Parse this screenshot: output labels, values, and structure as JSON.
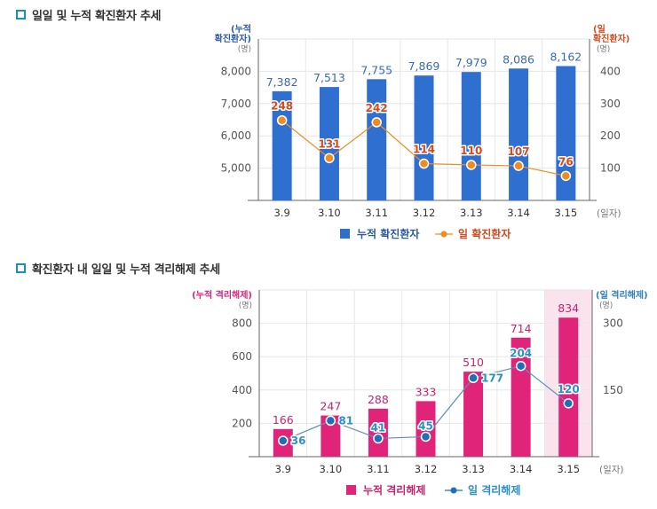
{
  "page": {
    "sections": [
      {
        "title": "일일 및 누적 확진환자 추세"
      },
      {
        "title": "확진환자 내 일일 및 누적 격리해제 추세"
      }
    ]
  },
  "chart_data": [
    {
      "type": "bar+line",
      "title": "일일 및 누적 확진환자 추세",
      "categories": [
        "3.9",
        "3.10",
        "3.11",
        "3.12",
        "3.13",
        "3.14",
        "3.15"
      ],
      "xlabel": "(일자)",
      "left_axis": {
        "title_lines": [
          "(누적",
          "확진환자)"
        ],
        "unit": "(명)",
        "ticks": [
          5000,
          6000,
          7000,
          8000
        ],
        "tick_labels": [
          "5,000",
          "6,000",
          "7,000",
          "8,000"
        ],
        "range": [
          4000,
          9000
        ],
        "color": "#2c5aa0"
      },
      "right_axis": {
        "title_lines": [
          "(일",
          "확진환자)"
        ],
        "unit": "(명)",
        "ticks": [
          100,
          200,
          300,
          400
        ],
        "tick_labels": [
          "100",
          "200",
          "300",
          "400"
        ],
        "range": [
          0,
          500
        ],
        "color": "#d24a1e"
      },
      "series": [
        {
          "name": "누적 확진환자",
          "type": "bar",
          "axis": "left",
          "color": "#2f6fd0",
          "label_color": "#3a6ab0",
          "values": [
            7382,
            7513,
            7755,
            7869,
            7979,
            8086,
            8162
          ],
          "labels": [
            "7,382",
            "7,513",
            "7,755",
            "7,869",
            "7,979",
            "8,086",
            "8,162"
          ]
        },
        {
          "name": "일 확진환자",
          "type": "line",
          "axis": "right",
          "color": "#f08c1e",
          "label_color": "#d24a1e",
          "values": [
            248,
            131,
            242,
            114,
            110,
            107,
            76
          ],
          "labels": [
            "248",
            "131",
            "242",
            "114",
            "110",
            "107",
            "76"
          ]
        }
      ],
      "highlight_category": null,
      "grid": true,
      "legend": "bottom-center"
    },
    {
      "type": "bar+line",
      "title": "확진환자 내 일일 및 누적 격리해제 추세",
      "categories": [
        "3.9",
        "3.10",
        "3.11",
        "3.12",
        "3.13",
        "3.14",
        "3.15"
      ],
      "xlabel": "(일자)",
      "left_axis": {
        "title_lines": [
          "(누적 격리해제)"
        ],
        "unit": "(명)",
        "ticks": [
          200,
          400,
          600,
          800
        ],
        "tick_labels": [
          "200",
          "400",
          "600",
          "800"
        ],
        "range": [
          0,
          1000
        ],
        "color": "#d6247a"
      },
      "right_axis": {
        "title_lines": [
          "(일 격리해제)"
        ],
        "unit": "(명)",
        "ticks": [
          150,
          300
        ],
        "tick_labels": [
          "150",
          "300"
        ],
        "range": [
          0,
          375
        ],
        "color": "#2a7fc0"
      },
      "series": [
        {
          "name": "누적 격리해제",
          "type": "bar",
          "axis": "left",
          "color": "#e0247a",
          "label_color": "#c8246e",
          "values": [
            166,
            247,
            288,
            333,
            510,
            714,
            834
          ],
          "labels": [
            "166",
            "247",
            "288",
            "333",
            "510",
            "714",
            "834"
          ]
        },
        {
          "name": "일 격리해제",
          "type": "line",
          "axis": "right",
          "color": "#1f6fb8",
          "label_color": "#2a8fd0",
          "values": [
            36,
            81,
            41,
            45,
            177,
            204,
            120
          ],
          "labels": [
            "36",
            "81",
            "41",
            "45",
            "177",
            "204",
            "120"
          ]
        }
      ],
      "highlight_category": "3.15",
      "highlight_color": "#fbe3ee",
      "grid": true,
      "legend": "bottom-center"
    }
  ]
}
